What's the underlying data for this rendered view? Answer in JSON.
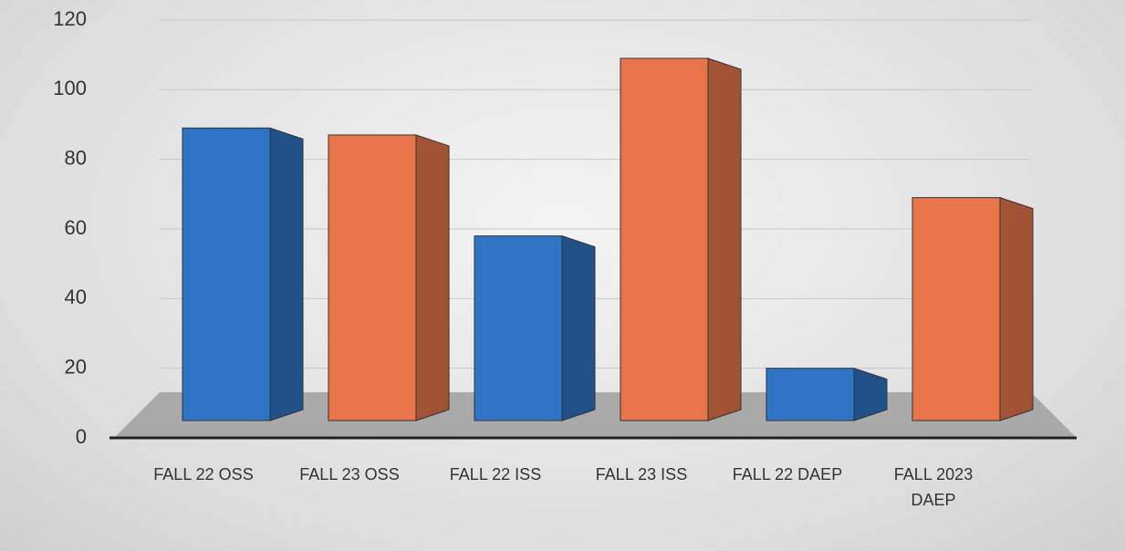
{
  "chart_data": {
    "type": "bar",
    "categories": [
      "FALL 22 OSS",
      "FALL 23 OSS",
      "FALL 22 ISS",
      "FALL 23 ISS",
      "FALL 22 DAEP",
      "FALL 2023 DAEP"
    ],
    "values": [
      89,
      87,
      58,
      109,
      20,
      69
    ],
    "colors": [
      "#2f73c4",
      "#e8764a",
      "#2f73c4",
      "#e8764a",
      "#2f73c4",
      "#e8764a"
    ],
    "ylim": [
      0,
      120
    ],
    "yticks": [
      0,
      20,
      40,
      60,
      80,
      100,
      120
    ],
    "grid": true
  }
}
